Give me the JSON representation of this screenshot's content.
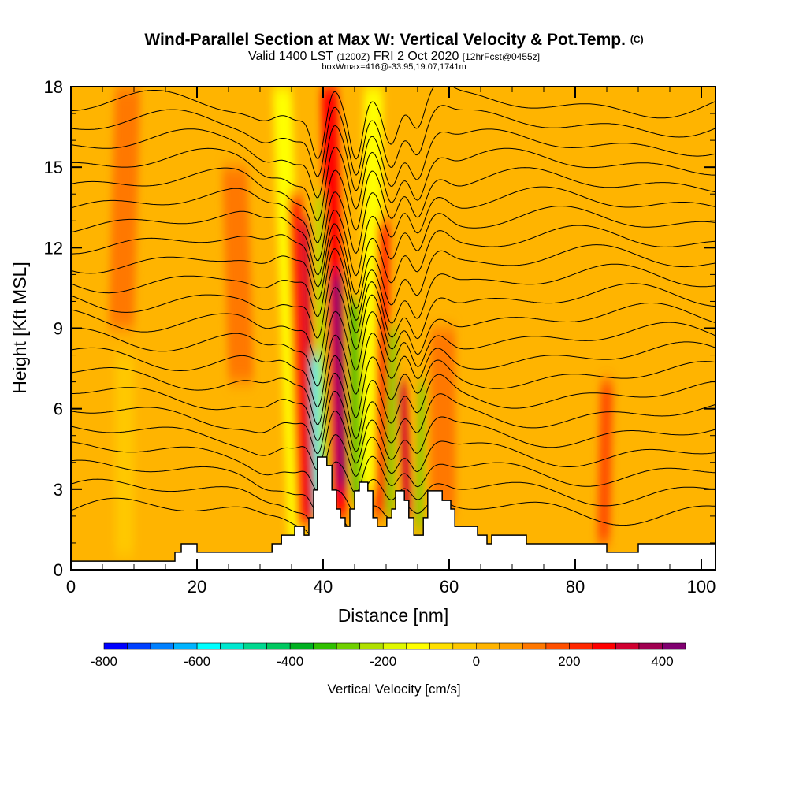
{
  "chart_data": {
    "type": "heatmap",
    "title": "Wind-Parallel Section at Max W: Vertical Velocity & Pot.Temp.",
    "title_mark": "(C)",
    "subtitle_valid": "Valid 1400 LST",
    "subtitle_utc": "(1200Z)",
    "subtitle_date": "FRI 2 Oct 2020",
    "subtitle_fcst": "[12hrFcst@0455z]",
    "subtitle2": "boxWmax=416@-33.95,19.07,1741m",
    "xlabel": "Distance [nm]",
    "ylabel": "Height [Kft MSL]",
    "xlim": [
      0,
      102.25
    ],
    "ylim": [
      0,
      18
    ],
    "xticks": [
      "0",
      "20",
      "40",
      "60",
      "80",
      "100"
    ],
    "yticks": [
      "0",
      "3",
      "6",
      "9",
      "12",
      "15",
      "18"
    ],
    "colorbar": {
      "label": "Vertical Velocity [cm/s]",
      "min": -800,
      "max": 450,
      "step": 50,
      "tick_labels": [
        "-800",
        "-600",
        "-400",
        "-200",
        "0",
        "200",
        "400"
      ],
      "colors": [
        "#0000ff",
        "#0040ff",
        "#0080ff",
        "#00b4ff",
        "#00ffff",
        "#00e8d0",
        "#00d890",
        "#00c860",
        "#00b020",
        "#30c000",
        "#70d000",
        "#b0e000",
        "#e0f800",
        "#ffff00",
        "#ffe000",
        "#ffc800",
        "#ffb400",
        "#ffa000",
        "#ff7800",
        "#ff5000",
        "#ff2800",
        "#ff0000",
        "#d00030",
        "#a00050",
        "#800070"
      ]
    },
    "max_vertical_velocity_cm_s": 416,
    "velocity_features": [
      {
        "x_bottom": 36,
        "x_top": 33.5,
        "w_cm_s": -150,
        "width_nm": 3,
        "z_range": [
          1,
          18
        ]
      },
      {
        "x_bottom": 37,
        "x_top": 35.5,
        "w_cm_s": 200,
        "width_nm": 2.2,
        "z_range": [
          1.5,
          14
        ]
      },
      {
        "x_bottom": 38.2,
        "x_top": 37.2,
        "w_cm_s": 300,
        "width_nm": 1.3,
        "z_range": [
          2,
          13
        ]
      },
      {
        "x_bottom": 39.3,
        "x_top": 38.6,
        "w_cm_s": -600,
        "width_nm": 1,
        "z_range": [
          2,
          8
        ]
      },
      {
        "x_bottom": 40.3,
        "x_top": 39.6,
        "w_cm_s": -250,
        "width_nm": 1.6,
        "z_range": [
          2,
          14
        ]
      },
      {
        "x_bottom": 42.5,
        "x_top": 41,
        "w_cm_s": 250,
        "width_nm": 2.6,
        "z_range": [
          2,
          18
        ]
      },
      {
        "x_bottom": 43,
        "x_top": 42.2,
        "w_cm_s": 400,
        "width_nm": 1.4,
        "z_range": [
          3,
          11
        ]
      },
      {
        "x_bottom": 45.5,
        "x_top": 45,
        "w_cm_s": -350,
        "width_nm": 1.4,
        "z_range": [
          2.5,
          10
        ]
      },
      {
        "x_bottom": 47.5,
        "x_top": 48,
        "w_cm_s": -150,
        "width_nm": 3,
        "z_range": [
          3,
          18
        ]
      },
      {
        "x_bottom": 49.2,
        "x_top": 49.6,
        "w_cm_s": 200,
        "width_nm": 2,
        "z_range": [
          2,
          13
        ]
      },
      {
        "x_bottom": 50.5,
        "x_top": 51,
        "w_cm_s": -300,
        "width_nm": 1.2,
        "z_range": [
          2,
          9
        ]
      },
      {
        "x_bottom": 53.5,
        "x_top": 52.5,
        "w_cm_s": 300,
        "width_nm": 1.3,
        "z_range": [
          2,
          7
        ]
      },
      {
        "x_bottom": 55.2,
        "x_top": 55.8,
        "w_cm_s": -300,
        "width_nm": 1,
        "z_range": [
          1.5,
          7
        ]
      },
      {
        "x_bottom": 59,
        "x_top": 59,
        "w_cm_s": 100,
        "width_nm": 4,
        "z_range": [
          2,
          9
        ]
      },
      {
        "x_bottom": 84.5,
        "x_top": 85,
        "w_cm_s": 150,
        "width_nm": 2,
        "z_range": [
          1,
          7
        ]
      },
      {
        "x_bottom": 8,
        "x_top": 9,
        "w_cm_s": 100,
        "width_nm": 4,
        "z_range": [
          9,
          18
        ]
      },
      {
        "x_bottom": 27,
        "x_top": 26,
        "w_cm_s": 100,
        "width_nm": 4,
        "z_range": [
          7,
          15
        ]
      },
      {
        "x_bottom": 8.5,
        "x_top": 8.5,
        "w_cm_s": -50,
        "width_nm": 3,
        "z_range": [
          0.5,
          8
        ]
      }
    ],
    "terrain_steps_kft": [
      [
        0,
        0.32
      ],
      [
        16.5,
        0.65
      ],
      [
        17.5,
        0.97
      ],
      [
        20,
        0.65
      ],
      [
        31.9,
        0.97
      ],
      [
        33.4,
        1.29
      ],
      [
        35.5,
        1.61
      ],
      [
        37,
        1.29
      ],
      [
        37.75,
        1.94
      ],
      [
        38.5,
        2.97
      ],
      [
        39.1,
        4.2
      ],
      [
        40.6,
        3.88
      ],
      [
        41.4,
        2.97
      ],
      [
        42.1,
        2.26
      ],
      [
        42.75,
        1.94
      ],
      [
        43.5,
        1.61
      ],
      [
        44.25,
        2.26
      ],
      [
        45,
        2.94
      ],
      [
        45.75,
        3.26
      ],
      [
        47.1,
        2.94
      ],
      [
        47.9,
        1.94
      ],
      [
        48.6,
        1.61
      ],
      [
        50.1,
        1.94
      ],
      [
        50.9,
        2.26
      ],
      [
        51.5,
        2.94
      ],
      [
        52.9,
        2.58
      ],
      [
        53.6,
        1.94
      ],
      [
        54.4,
        1.29
      ],
      [
        55.9,
        1.94
      ],
      [
        56.6,
        2.94
      ],
      [
        58.9,
        2.58
      ],
      [
        60.25,
        2.26
      ],
      [
        60.9,
        1.61
      ],
      [
        64.5,
        1.29
      ],
      [
        66,
        0.97
      ],
      [
        66.75,
        1.29
      ],
      [
        72.25,
        0.97
      ],
      [
        85,
        0.65
      ],
      [
        90,
        0.97
      ],
      [
        102.25,
        0.97
      ]
    ]
  }
}
